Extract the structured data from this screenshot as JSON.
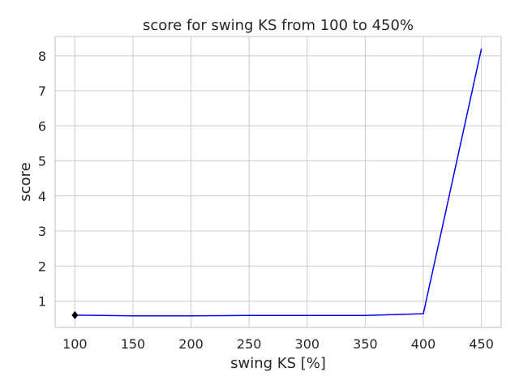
{
  "chart_data": {
    "type": "line",
    "title": "score for swing KS from 100 to 450%",
    "xlabel": "swing KS [%]",
    "ylabel": "score",
    "xlim": [
      83,
      467
    ],
    "ylim": [
      0.25,
      8.55
    ],
    "x_ticks": [
      100,
      150,
      200,
      250,
      300,
      350,
      400,
      450
    ],
    "y_ticks": [
      1,
      2,
      3,
      4,
      5,
      6,
      7,
      8
    ],
    "grid": true,
    "series": [
      {
        "color": "#0000ff",
        "x": [
          100,
          150,
          200,
          250,
          300,
          350,
          400,
          450
        ],
        "y": [
          0.6,
          0.58,
          0.58,
          0.59,
          0.59,
          0.59,
          0.64,
          8.2
        ]
      }
    ],
    "markers": [
      {
        "x": 100,
        "y": 0.6,
        "shape": "diamond",
        "color": "#000000"
      }
    ]
  }
}
